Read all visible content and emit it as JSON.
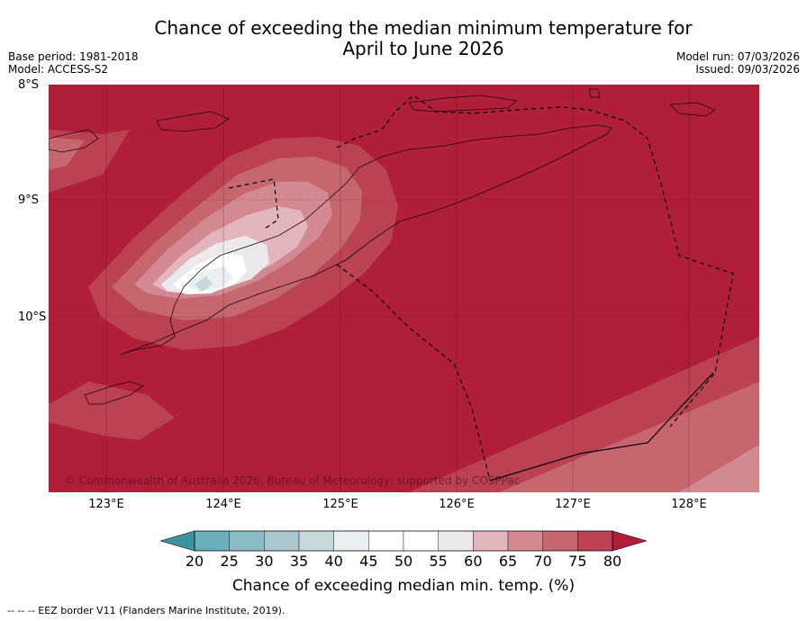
{
  "title_line1": "Chance of exceeding the median minimum temperature for",
  "title_line2": "April to June 2026",
  "meta_left": {
    "base_period": "Base period: 1981-2018",
    "model": "Model: ACCESS-S2"
  },
  "meta_right": {
    "model_run": "Model run: 07/03/2026",
    "issued": "Issued: 09/03/2026"
  },
  "lat_labels": [
    "8°S",
    "9°S",
    "10°S"
  ],
  "lon_labels": [
    "123°E",
    "124°E",
    "125°E",
    "126°E",
    "127°E",
    "128°E"
  ],
  "copyright": "© Commonwealth of Australia 2026, Bureau of Meteorology, supported by COSPPac",
  "colorbar": {
    "ticks": [
      "20",
      "25",
      "30",
      "35",
      "40",
      "45",
      "50",
      "55",
      "60",
      "65",
      "70",
      "75",
      "80"
    ],
    "label": "Chance of exceeding median min. temp. (%)",
    "colors": [
      "#4f9eab",
      "#6aafbd",
      "#8bbcc6",
      "#a9c7cd",
      "#c8d8da",
      "#e9eff2",
      "#ffffff",
      "#ffffff",
      "#ebe9eb",
      "#e3b6be",
      "#d38992",
      "#c6666f",
      "#bb4253"
    ],
    "under_color": "#3e929e",
    "over_color": "#b01e3a"
  },
  "map_colors": {
    "ge80": "#b01e3a",
    "c75_80": "#bb4253",
    "c70_75": "#c6666f",
    "c65_70": "#d38992",
    "c60_65": "#e3b6be",
    "c55_60": "#ebe9eb",
    "c50_55": "#ffffff",
    "c45_50": "#e9eff2",
    "c40_45": "#c8d8da"
  },
  "footer": "--  --  -- EEZ border V11 (Flanders Marine Institute, 2019)."
}
